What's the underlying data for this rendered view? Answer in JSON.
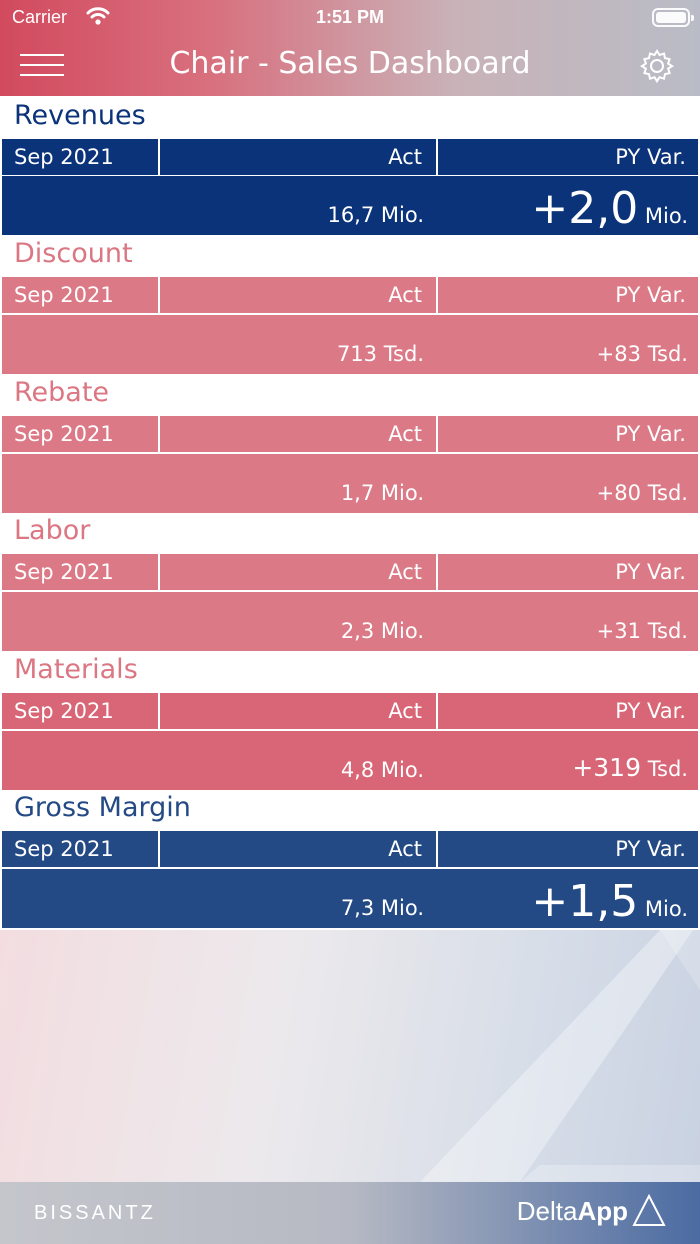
{
  "status_bar": {
    "carrier": "Carrier",
    "time": "1:51 PM"
  },
  "header": {
    "title": "Chair - Sales Dashboard",
    "menu_icon": "hamburger-icon",
    "settings_icon": "gear-icon"
  },
  "colors": {
    "navy": "#0a337a",
    "navy_light": "#244a86",
    "pink": "#db7683",
    "pink_dark": "#d86676"
  },
  "sections": [
    {
      "title": "Revenues",
      "period": "Sep 2021",
      "act_label": "Act",
      "var_label": "PY Var.",
      "act_value": "16,7 Mio.",
      "var_value": "+2,0",
      "var_unit": "Mio."
    },
    {
      "title": "Discount",
      "period": "Sep 2021",
      "act_label": "Act",
      "var_label": "PY Var.",
      "act_value": "713 Tsd.",
      "var_value": "+83",
      "var_unit": "Tsd."
    },
    {
      "title": "Rebate",
      "period": "Sep 2021",
      "act_label": "Act",
      "var_label": "PY Var.",
      "act_value": "1,7 Mio.",
      "var_value": "+80",
      "var_unit": "Tsd."
    },
    {
      "title": "Labor",
      "period": "Sep 2021",
      "act_label": "Act",
      "var_label": "PY Var.",
      "act_value": "2,3 Mio.",
      "var_value": "+31",
      "var_unit": "Tsd."
    },
    {
      "title": "Materials",
      "period": "Sep 2021",
      "act_label": "Act",
      "var_label": "PY Var.",
      "act_value": "4,8 Mio.",
      "var_value": "+319",
      "var_unit": "Tsd."
    },
    {
      "title": "Gross Margin",
      "period": "Sep 2021",
      "act_label": "Act",
      "var_label": "PY Var.",
      "act_value": "7,3 Mio.",
      "var_value": "+1,5",
      "var_unit": "Mio."
    }
  ],
  "footer": {
    "brand": "BISSANTZ",
    "app_prefix": "Delta",
    "app_name": "App"
  }
}
